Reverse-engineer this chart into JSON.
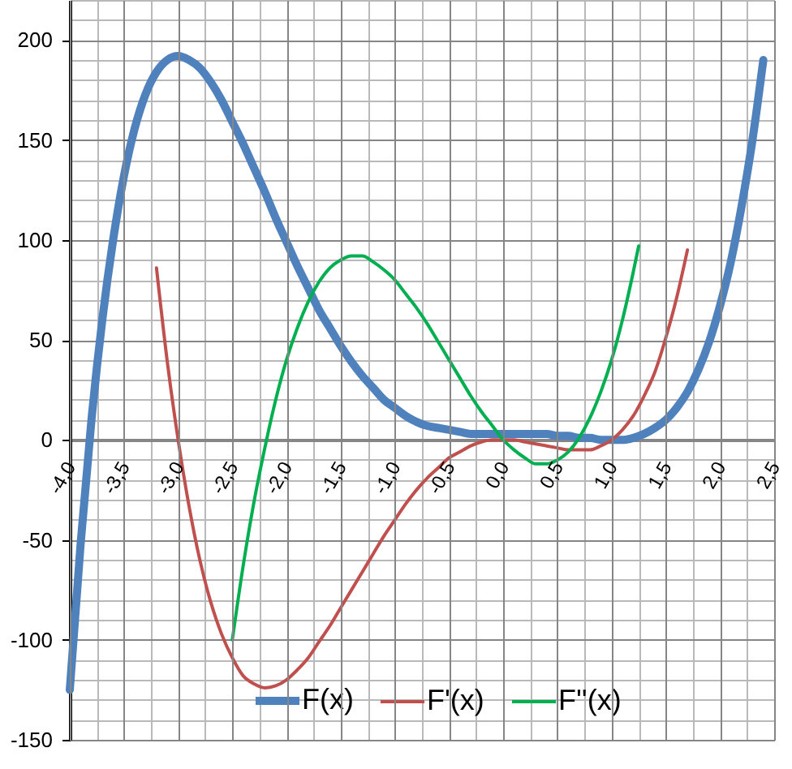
{
  "chart_data": {
    "type": "line",
    "series": [
      {
        "name": "F(x)",
        "color": "#4f81bd",
        "x": [
          -4,
          -3.9,
          -3.8,
          -3.7,
          -3.6,
          -3.5,
          -3.4,
          -3.3,
          -3.2,
          -3.1,
          -3,
          -2.9,
          -2.8,
          -2.7,
          -2.6,
          -2.5,
          -2.4,
          -2.3,
          -2.2,
          -2.1,
          -2,
          -1.9,
          -1.8,
          -1.7,
          -1.6,
          -1.5,
          -1.4,
          -1.3,
          -1.2,
          -1.1,
          -1,
          -0.9,
          -0.8,
          -0.7,
          -0.6,
          -0.5,
          -0.4,
          -0.3,
          -0.2,
          -0.1,
          0,
          0.1,
          0.2,
          0.3,
          0.4,
          0.5,
          0.6,
          0.7,
          0.8,
          0.9,
          1,
          1.1,
          1.2,
          1.3,
          1.4,
          1.5,
          1.6,
          1.7,
          1.8,
          1.9,
          2,
          2.1,
          2.2,
          2.3,
          2.4
        ],
        "values": [
          -125,
          -52,
          10,
          60,
          100,
          132,
          156,
          173,
          184,
          190,
          192,
          190,
          186,
          179,
          170,
          159,
          148,
          136,
          124,
          111,
          99,
          87,
          76,
          65,
          56,
          47,
          39,
          32,
          26,
          20,
          16,
          12,
          9,
          7,
          6,
          5,
          4,
          3,
          3,
          3,
          3,
          3,
          3,
          3,
          3,
          2,
          2,
          1,
          1,
          0,
          0,
          0,
          1,
          3,
          6,
          10,
          16,
          24,
          35,
          49,
          67,
          89,
          117,
          150,
          190
        ]
      },
      {
        "name": "F'(x)",
        "color": "#c0504d",
        "x": [
          -3.2,
          -3.1,
          -3,
          -2.9,
          -2.8,
          -2.7,
          -2.6,
          -2.5,
          -2.4,
          -2.3,
          -2.2,
          -2.1,
          -2,
          -1.9,
          -1.8,
          -1.7,
          -1.6,
          -1.5,
          -1.4,
          -1.3,
          -1.2,
          -1.1,
          -1,
          -0.9,
          -0.8,
          -0.7,
          -0.6,
          -0.5,
          -0.4,
          -0.3,
          -0.2,
          -0.1,
          0,
          0.1,
          0.2,
          0.3,
          0.4,
          0.5,
          0.6,
          0.7,
          0.8,
          0.9,
          1,
          1.1,
          1.2,
          1.3,
          1.4,
          1.5,
          1.6,
          1.7
        ],
        "values": [
          86,
          39,
          0,
          -33,
          -60,
          -81,
          -97,
          -109,
          -118,
          -122,
          -124,
          -123,
          -120,
          -115,
          -109,
          -101,
          -93,
          -84,
          -75,
          -66,
          -57,
          -48,
          -40,
          -32,
          -25,
          -19,
          -14,
          -9,
          -6,
          -3,
          -1,
          0,
          0,
          0,
          -1,
          -2,
          -3,
          -4,
          -5,
          -5,
          -5,
          -3,
          0,
          5,
          12,
          22,
          34,
          51,
          71,
          95
        ]
      },
      {
        "name": "F''(x)",
        "color": "#00b050",
        "x": [
          -2.5,
          -2.4,
          -2.3,
          -2.2,
          -2.1,
          -2,
          -1.9,
          -1.8,
          -1.7,
          -1.6,
          -1.5,
          -1.4,
          -1.3,
          -1.2,
          -1.1,
          -1,
          -0.9,
          -0.8,
          -0.7,
          -0.6,
          -0.5,
          -0.4,
          -0.3,
          -0.2,
          -0.1,
          0,
          0.1,
          0.2,
          0.3,
          0.4,
          0.5,
          0.6,
          0.7,
          0.8,
          0.9,
          1,
          1.1,
          1.2,
          1.25
        ],
        "values": [
          -100,
          -63,
          -31,
          -4,
          20,
          40,
          56,
          69,
          79,
          86,
          90,
          92,
          92,
          89,
          85,
          80,
          73,
          66,
          58,
          49,
          40,
          31,
          22,
          14,
          7,
          0,
          -5,
          -9,
          -12,
          -12,
          -10,
          -6,
          1,
          11,
          24,
          40,
          60,
          84,
          97
        ]
      }
    ],
    "xlim": [
      -4,
      2.5
    ],
    "xticks": [
      {
        "value": -4,
        "label": "-4,0"
      },
      {
        "value": -3.5,
        "label": "-3,5"
      },
      {
        "value": -3,
        "label": "-3,0"
      },
      {
        "value": -2.5,
        "label": "-2,5"
      },
      {
        "value": -2,
        "label": "-2,0"
      },
      {
        "value": -1.5,
        "label": "-1,5"
      },
      {
        "value": -1,
        "label": "-1,0"
      },
      {
        "value": -0.5,
        "label": "-0,5"
      },
      {
        "value": 0,
        "label": "0,0"
      },
      {
        "value": 0.5,
        "label": "0,5"
      },
      {
        "value": 1,
        "label": "1,0"
      },
      {
        "value": 1.5,
        "label": "1,5"
      },
      {
        "value": 2,
        "label": "2,0"
      },
      {
        "value": 2.5,
        "label": "2,5"
      }
    ],
    "ylim": [
      -150,
      220
    ],
    "yticks": [
      -150,
      -100,
      -50,
      0,
      50,
      100,
      150,
      200
    ],
    "grid": true,
    "legend": "bottom",
    "line_style": "solid"
  }
}
